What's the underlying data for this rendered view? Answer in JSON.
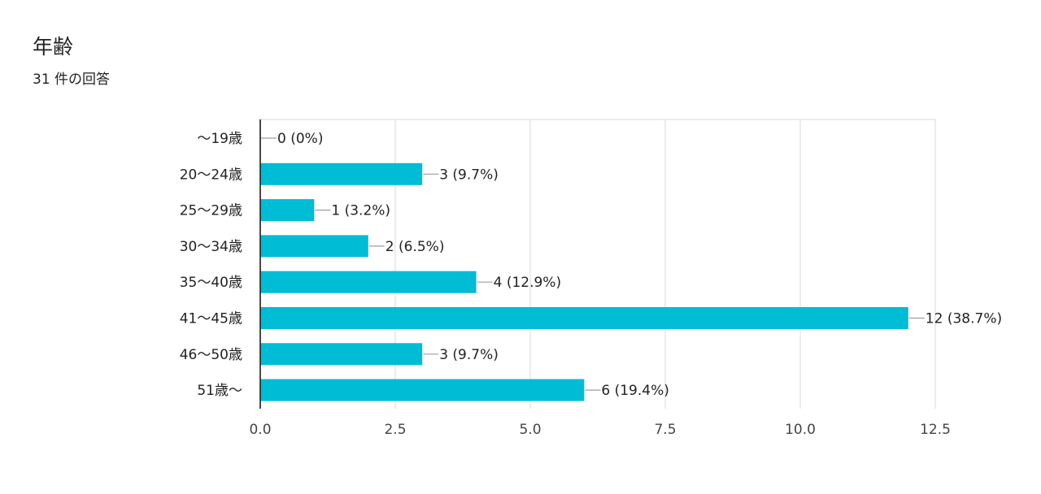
{
  "question": {
    "title": "年齢",
    "response_count": "31 件の回答"
  },
  "colors": {
    "bar": "#00BCD4",
    "grid": "#e6e6e6",
    "axis": "#333333",
    "text": "#222222",
    "tick": "#444444",
    "leader": "#9e9e9e"
  },
  "chart_data": {
    "type": "bar",
    "orientation": "horizontal",
    "categories": [
      "〜19歳",
      "20〜24歳",
      "25〜29歳",
      "30〜34歳",
      "35〜40歳",
      "41〜45歳",
      "46〜50歳",
      "51歳〜"
    ],
    "values": [
      0,
      3,
      1,
      2,
      4,
      12,
      3,
      6
    ],
    "data_labels": [
      "0 (0%)",
      "3 (9.7%)",
      "1 (3.2%)",
      "2 (6.5%)",
      "4 (12.9%)",
      "12 (38.7%)",
      "3 (9.7%)",
      "6 (19.4%)"
    ],
    "xlim": [
      0,
      12.5
    ],
    "xticks": [
      0,
      2.5,
      5,
      7.5,
      10,
      12.5
    ],
    "xtick_labels": [
      "0.0",
      "2.5",
      "5.0",
      "7.5",
      "10.0",
      "12.5"
    ],
    "grid": true
  }
}
